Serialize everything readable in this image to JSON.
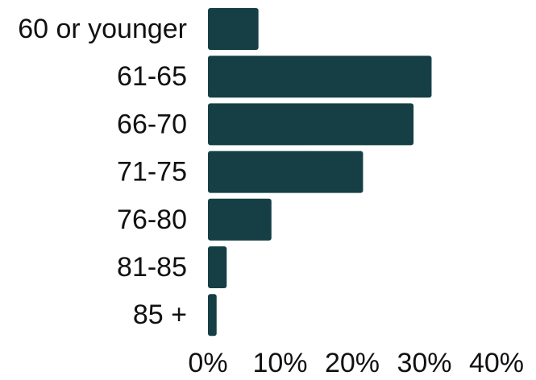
{
  "chart_data": {
    "type": "bar",
    "orientation": "horizontal",
    "categories": [
      "60 or younger",
      "61-65",
      "66-70",
      "71-75",
      "76-80",
      "81-85",
      "85 +"
    ],
    "values": [
      7,
      31,
      28.5,
      21.5,
      8.8,
      2.6,
      1.2
    ],
    "value_unit": "percent",
    "xlim": [
      0,
      40
    ],
    "x_ticks": [
      0,
      10,
      20,
      30,
      40
    ],
    "x_tick_labels": [
      "0%",
      "10%",
      "20%",
      "30%",
      "40%"
    ],
    "grid": false,
    "legend": "none",
    "bar_color": "#163f45"
  }
}
